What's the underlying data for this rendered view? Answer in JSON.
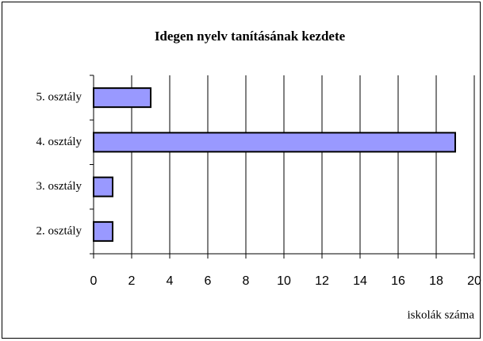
{
  "chart_data": {
    "type": "hbar",
    "title": "Idegen nyelv tanításának kezdete",
    "categories": [
      "5. osztály",
      "4. osztály",
      "3. osztály",
      "2. osztály"
    ],
    "values": [
      3,
      19,
      1,
      1
    ],
    "color": "#9999ff",
    "xlabel": "iskolák száma",
    "xlim": [
      0,
      20
    ],
    "xticks": [
      0,
      2,
      4,
      6,
      8,
      10,
      12,
      14,
      16,
      18,
      20
    ],
    "grid": true
  }
}
